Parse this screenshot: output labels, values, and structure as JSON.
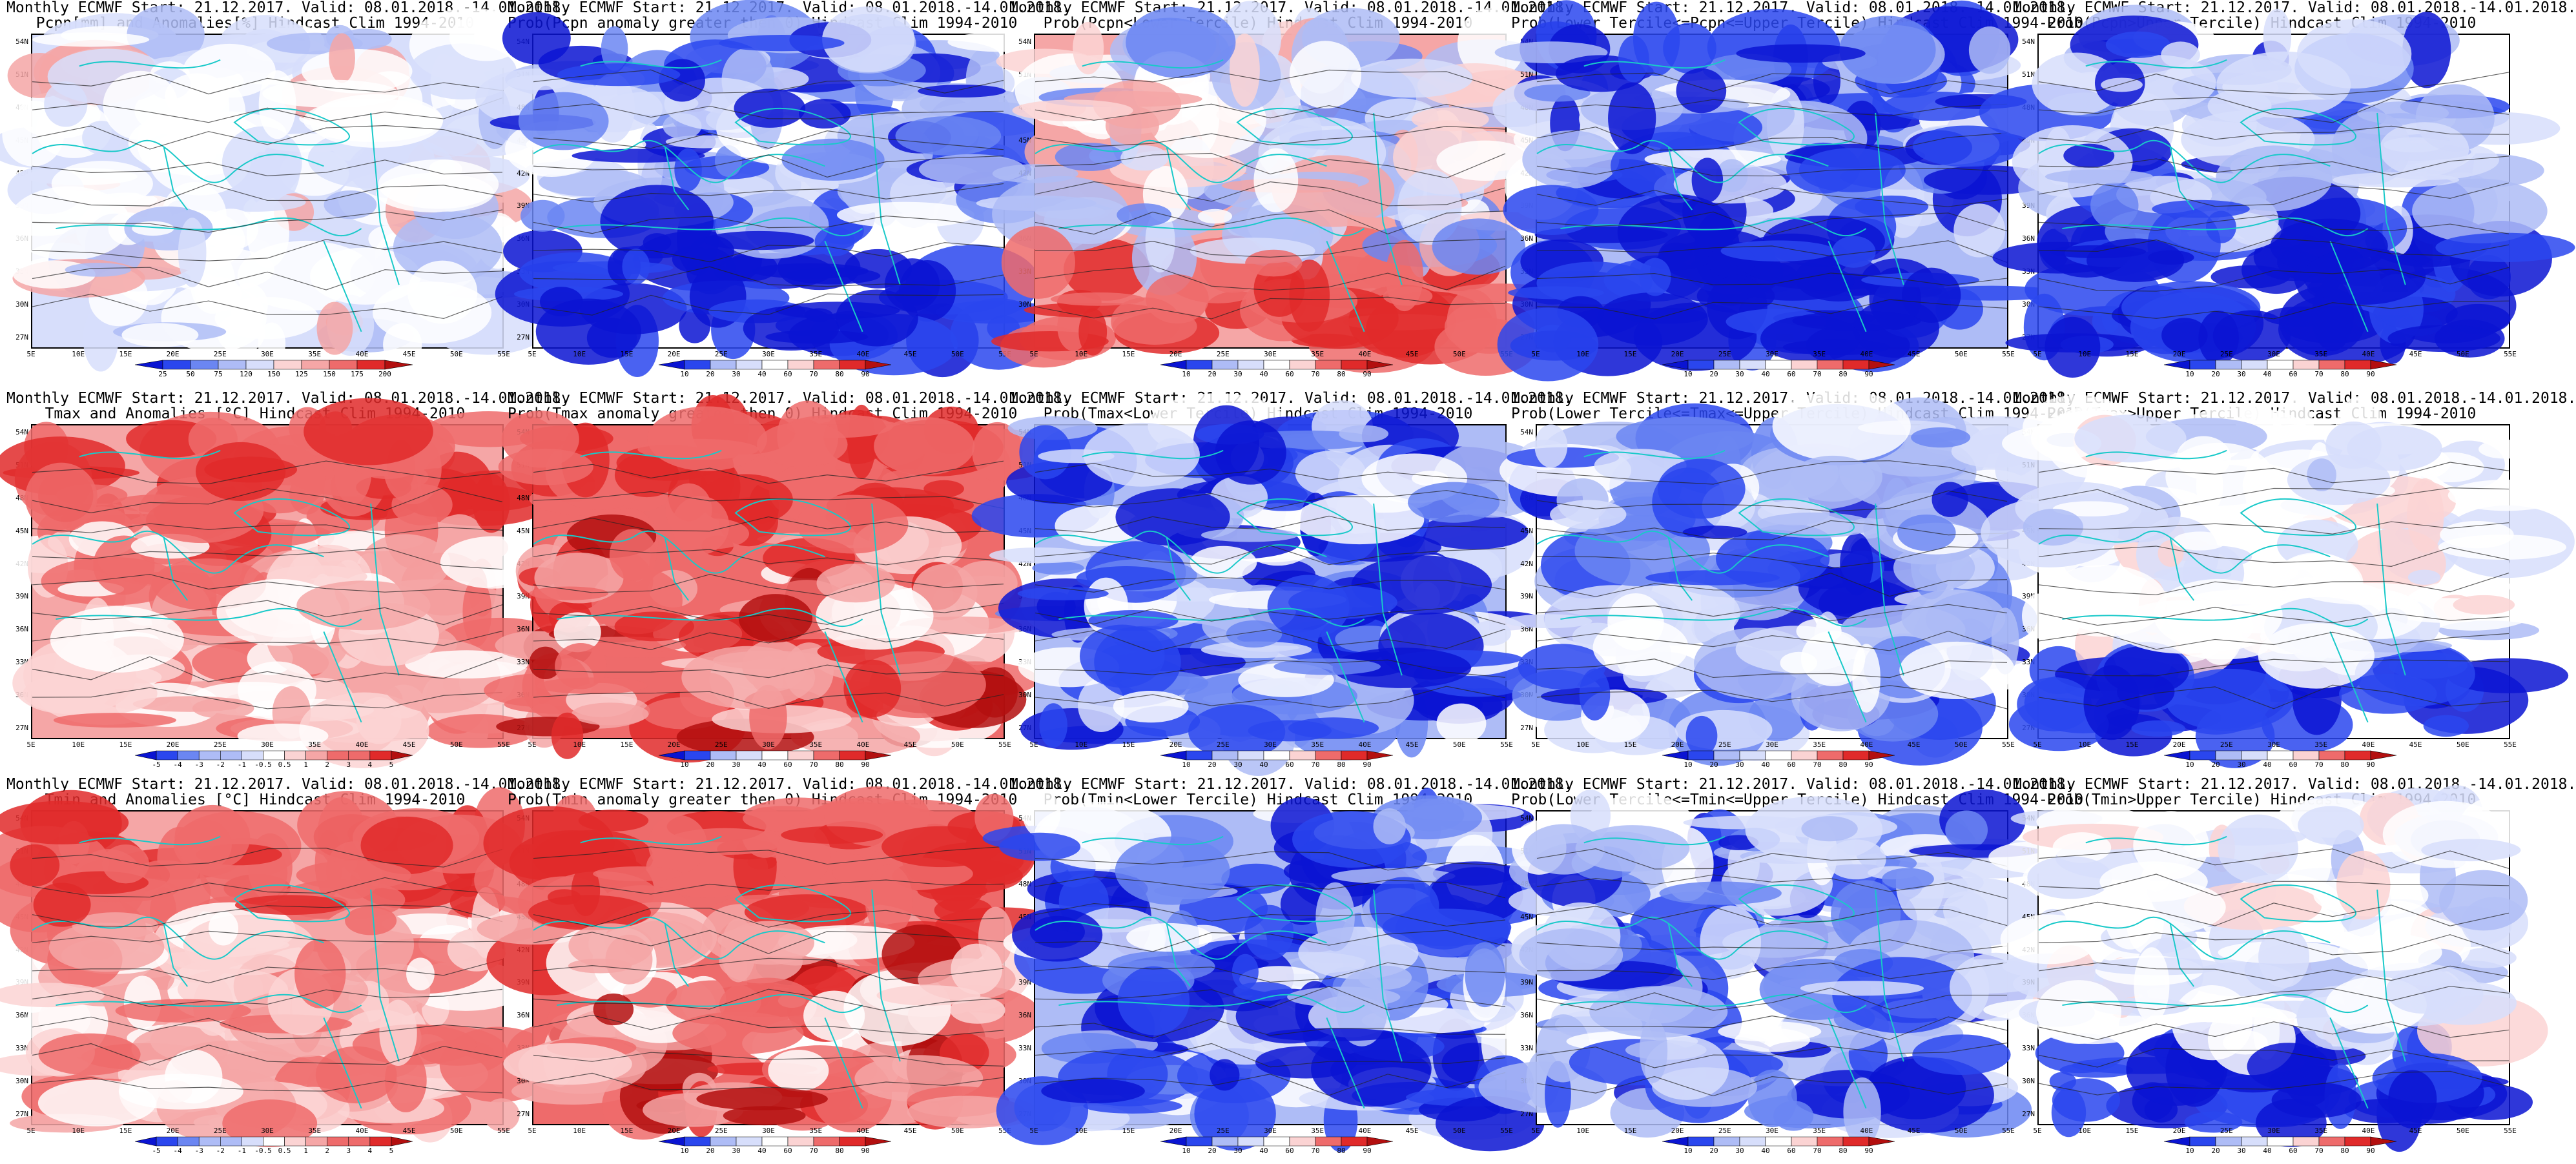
{
  "colors": {
    "blue_dark": "#0a14d2",
    "blue": "#2a46ee",
    "blue_mid": "#6b86f2",
    "blue_light": "#aebcf6",
    "blue_pale": "#d7defb",
    "white": "#ffffff",
    "red_pale": "#fbd3d3",
    "red_light": "#f5a6a6",
    "red_mid": "#ee6b6b",
    "red": "#e02a2a",
    "red_dark": "#b30f0f",
    "coast": "#19c9c9",
    "contour": "#222222"
  },
  "x_ticks": [
    "5E",
    "10E",
    "15E",
    "20E",
    "25E",
    "30E",
    "35E",
    "40E",
    "45E",
    "50E",
    "55E"
  ],
  "y_ticks": [
    "54N",
    "51N",
    "48N",
    "45N",
    "42N",
    "39N",
    "36N",
    "33N",
    "30N",
    "27N"
  ],
  "rows": [
    {
      "variable": "Pcpn",
      "panels": [
        {
          "title_line1": "Monthly ECMWF Start: 21.12.2017. Valid: 08.01.2018.-14.01.2018.",
          "title_line2": "Pcpn[mm] and Anomalies[%] Hindcast Clim 1994-2010",
          "colorbar": [
            "25",
            "50",
            "75",
            "120",
            "150",
            "125",
            "150",
            "175",
            "200"
          ],
          "scheme": "anom"
        },
        {
          "title_line1": "Monthly ECMWF Start: 21.12.2017. Valid: 08.01.2018.-14.01.2018.",
          "title_line2": "Prob(Pcpn anomaly greater then 0) Hindcast Clim 1994-2010",
          "colorbar": [
            "10",
            "20",
            "30",
            "40",
            "60",
            "70",
            "80",
            "90"
          ],
          "scheme": "blue"
        },
        {
          "title_line1": "Monthly ECMWF Start: 21.12.2017. Valid: 08.01.2018.-14.01.2018.",
          "title_line2": "Prob(Pcpn<Lower Tercile) Hindcast Clim 1994-2010",
          "colorbar": [
            "10",
            "20",
            "30",
            "40",
            "60",
            "70",
            "80",
            "90"
          ],
          "scheme": "mixed"
        },
        {
          "title_line1": "Monthly ECMWF Start: 21.12.2017. Valid: 08.01.2018.-14.01.2018.",
          "title_line2": "Prob(Lower Tercile<=Pcpn<=Upper Tercile) Hindcast Clim 1994-2010",
          "colorbar": [
            "10",
            "20",
            "30",
            "40",
            "60",
            "70",
            "80",
            "90"
          ],
          "scheme": "deepblue"
        },
        {
          "title_line1": "Monthly ECMWF Start: 21.12.2017. Valid: 08.01.2018.-14.01.2018.",
          "title_line2": "Prob(Pcpn>Upper Tercile) Hindcast Clim 1994-2010",
          "colorbar": [
            "10",
            "20",
            "30",
            "40",
            "60",
            "70",
            "80",
            "90"
          ],
          "scheme": "blue"
        }
      ]
    },
    {
      "variable": "Tmax",
      "panels": [
        {
          "title_line1": "Monthly ECMWF Start: 21.12.2017. Valid: 08.01.2018.-14.01.2018.",
          "title_line2": "Tmax and Anomalies [°C] Hindcast Clim 1994-2010",
          "colorbar": [
            "-5",
            "-4",
            "-3",
            "-2",
            "-1",
            "-0.5",
            "0.5",
            "1",
            "2",
            "3",
            "4",
            "5"
          ],
          "scheme": "red"
        },
        {
          "title_line1": "Monthly ECMWF Start: 21.12.2017. Valid: 08.01.2018.-14.01.2018.",
          "title_line2": "Prob(Tmax anomaly greater then 0) Hindcast Clim 1994-2010",
          "colorbar": [
            "10",
            "20",
            "30",
            "40",
            "60",
            "70",
            "80",
            "90"
          ],
          "scheme": "redstrong"
        },
        {
          "title_line1": "Monthly ECMWF Start: 21.12.2017. Valid: 08.01.2018.-14.01.2018.",
          "title_line2": "Prob(Tmax<Lower Tercile) Hindcast Clim 1994-2010",
          "colorbar": [
            "10",
            "20",
            "30",
            "40",
            "60",
            "70",
            "80",
            "90"
          ],
          "scheme": "deepblue"
        },
        {
          "title_line1": "Monthly ECMWF Start: 21.12.2017. Valid: 08.01.2018.-14.01.2018.",
          "title_line2": "Prob(Lower Tercile<=Tmax<=Upper Tercile) Hindcast Clim 1994-2010",
          "colorbar": [
            "10",
            "20",
            "30",
            "40",
            "60",
            "70",
            "80",
            "90"
          ],
          "scheme": "blue"
        },
        {
          "title_line1": "Monthly ECMWF Start: 21.12.2017. Valid: 08.01.2018.-14.01.2018.",
          "title_line2": "Prob(Tmax>Upper Tercile) Hindcast Clim 1994-2010",
          "colorbar": [
            "10",
            "20",
            "30",
            "40",
            "60",
            "70",
            "80",
            "90"
          ],
          "scheme": "whitemix"
        }
      ]
    },
    {
      "variable": "Tmin",
      "panels": [
        {
          "title_line1": "Monthly ECMWF Start: 21.12.2017. Valid: 08.01.2018.-14.01.2018.",
          "title_line2": "Tmin and Anomalies [°C] Hindcast Clim 1994-2010",
          "colorbar": [
            "-5",
            "-4",
            "-3",
            "-2",
            "-1",
            "-0.5",
            "0.5",
            "1",
            "2",
            "3",
            "4",
            "5"
          ],
          "scheme": "red"
        },
        {
          "title_line1": "Monthly ECMWF Start: 21.12.2017. Valid: 08.01.2018.-14.01.2018.",
          "title_line2": "Prob(Tmin anomaly greater then 0) Hindcast Clim 1994-2010",
          "colorbar": [
            "10",
            "20",
            "30",
            "40",
            "60",
            "70",
            "80",
            "90"
          ],
          "scheme": "redstrong"
        },
        {
          "title_line1": "Monthly ECMWF Start: 21.12.2017. Valid: 08.01.2018.-14.01.2018.",
          "title_line2": "Prob(Tmin<Lower Tercile) Hindcast Clim 1994-2010",
          "colorbar": [
            "10",
            "20",
            "30",
            "40",
            "60",
            "70",
            "80",
            "90"
          ],
          "scheme": "deepblue"
        },
        {
          "title_line1": "Monthly ECMWF Start: 21.12.2017. Valid: 08.01.2018.-14.01.2018.",
          "title_line2": "Prob(Lower Tercile<=Tmin<=Upper Tercile) Hindcast Clim 1994-2010",
          "colorbar": [
            "10",
            "20",
            "30",
            "40",
            "60",
            "70",
            "80",
            "90"
          ],
          "scheme": "blue"
        },
        {
          "title_line1": "Monthly ECMWF Start: 21.12.2017. Valid: 08.01.2018.-14.01.2018.",
          "title_line2": "Prob(Tmin>Upper Tercile) Hindcast Clim 1994-2010",
          "colorbar": [
            "10",
            "20",
            "30",
            "40",
            "60",
            "70",
            "80",
            "90"
          ],
          "scheme": "whitemix"
        }
      ]
    }
  ]
}
